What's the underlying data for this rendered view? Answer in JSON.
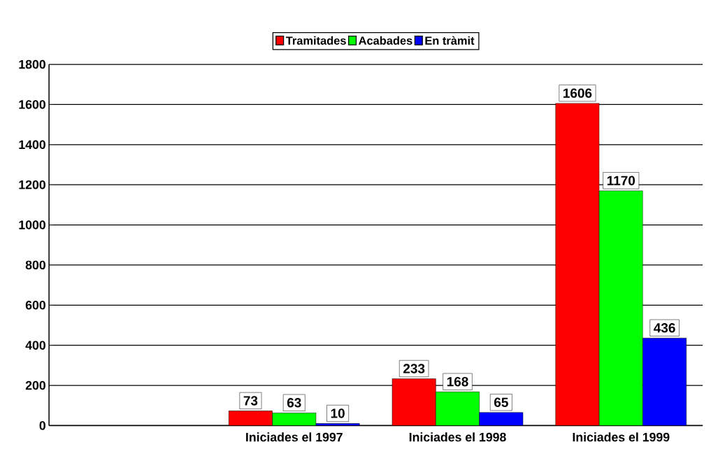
{
  "chart_data": {
    "type": "bar",
    "categories": [
      null,
      "Iniciades el 1997",
      "Iniciades el 1998",
      "Iniciades el 1999"
    ],
    "series": [
      {
        "name": "Tramitades",
        "color": "#ff0000",
        "values": [
          null,
          73,
          233,
          1606
        ]
      },
      {
        "name": "Acabades",
        "color": "#00ff00",
        "values": [
          null,
          63,
          168,
          1170
        ]
      },
      {
        "name": "En tràmit",
        "color": "#0000ff",
        "values": [
          null,
          10,
          65,
          436
        ]
      }
    ],
    "ylim": [
      0,
      1800
    ],
    "yticks": [
      0,
      200,
      400,
      600,
      800,
      1000,
      1200,
      1400,
      1600,
      1800
    ],
    "grid": "y",
    "legend": "top",
    "data_labels": true
  }
}
